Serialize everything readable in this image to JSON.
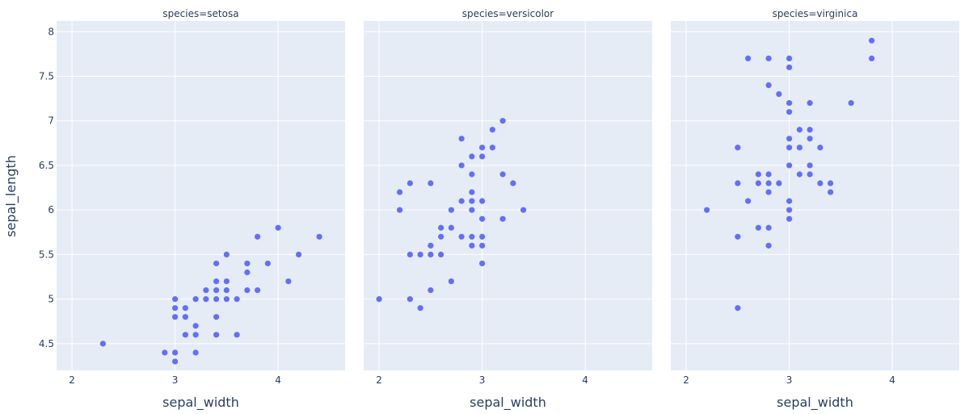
{
  "chart_data": {
    "type": "scatter",
    "xlabel": "sepal_width",
    "ylabel": "sepal_length",
    "xlim": [
      1.85,
      4.65
    ],
    "ylim": [
      4.2,
      8.12
    ],
    "x_ticks": [
      2,
      3,
      4
    ],
    "y_ticks": [
      4.5,
      5,
      5.5,
      6,
      6.5,
      7,
      7.5,
      8
    ],
    "y_tick_labels": [
      "4.5",
      "5",
      "5.5",
      "6",
      "6.5",
      "7",
      "7.5",
      "8"
    ],
    "marker_color": "#636efa",
    "plot_bgcolor": "#e5ecf6",
    "grid": true,
    "facets": [
      {
        "title": "species=setosa",
        "points": [
          [
            2.3,
            4.5
          ],
          [
            2.9,
            4.4
          ],
          [
            3.0,
            4.3
          ],
          [
            3.0,
            4.4
          ],
          [
            3.0,
            4.8
          ],
          [
            3.0,
            4.9
          ],
          [
            3.0,
            5.0
          ],
          [
            3.1,
            4.6
          ],
          [
            3.1,
            4.8
          ],
          [
            3.1,
            4.9
          ],
          [
            3.2,
            4.4
          ],
          [
            3.2,
            4.6
          ],
          [
            3.2,
            4.7
          ],
          [
            3.2,
            5.0
          ],
          [
            3.3,
            5.0
          ],
          [
            3.3,
            5.1
          ],
          [
            3.4,
            4.6
          ],
          [
            3.4,
            4.8
          ],
          [
            3.4,
            5.0
          ],
          [
            3.4,
            5.1
          ],
          [
            3.4,
            5.2
          ],
          [
            3.4,
            5.4
          ],
          [
            3.5,
            5.0
          ],
          [
            3.5,
            5.1
          ],
          [
            3.5,
            5.2
          ],
          [
            3.5,
            5.5
          ],
          [
            3.6,
            4.6
          ],
          [
            3.6,
            5.0
          ],
          [
            3.7,
            5.1
          ],
          [
            3.7,
            5.3
          ],
          [
            3.7,
            5.4
          ],
          [
            3.8,
            5.1
          ],
          [
            3.8,
            5.7
          ],
          [
            3.9,
            5.4
          ],
          [
            4.0,
            5.8
          ],
          [
            4.1,
            5.2
          ],
          [
            4.2,
            5.5
          ],
          [
            4.4,
            5.7
          ]
        ]
      },
      {
        "title": "species=versicolor",
        "points": [
          [
            2.0,
            5.0
          ],
          [
            2.2,
            6.0
          ],
          [
            2.2,
            6.2
          ],
          [
            2.3,
            5.0
          ],
          [
            2.3,
            5.5
          ],
          [
            2.3,
            6.3
          ],
          [
            2.4,
            4.9
          ],
          [
            2.4,
            5.5
          ],
          [
            2.5,
            5.1
          ],
          [
            2.5,
            5.5
          ],
          [
            2.5,
            5.6
          ],
          [
            2.5,
            6.3
          ],
          [
            2.6,
            5.5
          ],
          [
            2.6,
            5.7
          ],
          [
            2.6,
            5.8
          ],
          [
            2.7,
            5.2
          ],
          [
            2.7,
            5.8
          ],
          [
            2.7,
            6.0
          ],
          [
            2.8,
            5.7
          ],
          [
            2.8,
            6.1
          ],
          [
            2.8,
            6.5
          ],
          [
            2.8,
            6.8
          ],
          [
            2.9,
            5.6
          ],
          [
            2.9,
            5.7
          ],
          [
            2.9,
            6.0
          ],
          [
            2.9,
            6.1
          ],
          [
            2.9,
            6.2
          ],
          [
            2.9,
            6.4
          ],
          [
            2.9,
            6.6
          ],
          [
            3.0,
            5.4
          ],
          [
            3.0,
            5.6
          ],
          [
            3.0,
            5.7
          ],
          [
            3.0,
            5.9
          ],
          [
            3.0,
            6.1
          ],
          [
            3.0,
            6.6
          ],
          [
            3.0,
            6.7
          ],
          [
            3.1,
            6.7
          ],
          [
            3.1,
            6.9
          ],
          [
            3.2,
            5.9
          ],
          [
            3.2,
            6.4
          ],
          [
            3.2,
            7.0
          ],
          [
            3.3,
            6.3
          ],
          [
            3.4,
            6.0
          ]
        ]
      },
      {
        "title": "species=virginica",
        "points": [
          [
            2.2,
            6.0
          ],
          [
            2.5,
            4.9
          ],
          [
            2.5,
            5.7
          ],
          [
            2.5,
            6.3
          ],
          [
            2.5,
            6.7
          ],
          [
            2.6,
            6.1
          ],
          [
            2.6,
            7.7
          ],
          [
            2.7,
            5.8
          ],
          [
            2.7,
            6.3
          ],
          [
            2.7,
            6.4
          ],
          [
            2.8,
            5.6
          ],
          [
            2.8,
            5.8
          ],
          [
            2.8,
            6.2
          ],
          [
            2.8,
            6.3
          ],
          [
            2.8,
            6.4
          ],
          [
            2.8,
            7.4
          ],
          [
            2.8,
            7.7
          ],
          [
            2.9,
            6.3
          ],
          [
            2.9,
            7.3
          ],
          [
            3.0,
            5.9
          ],
          [
            3.0,
            6.0
          ],
          [
            3.0,
            6.1
          ],
          [
            3.0,
            6.5
          ],
          [
            3.0,
            6.7
          ],
          [
            3.0,
            6.8
          ],
          [
            3.0,
            7.1
          ],
          [
            3.0,
            7.2
          ],
          [
            3.0,
            7.6
          ],
          [
            3.0,
            7.7
          ],
          [
            3.1,
            6.4
          ],
          [
            3.1,
            6.7
          ],
          [
            3.1,
            6.9
          ],
          [
            3.2,
            6.4
          ],
          [
            3.2,
            6.5
          ],
          [
            3.2,
            6.8
          ],
          [
            3.2,
            6.9
          ],
          [
            3.2,
            7.2
          ],
          [
            3.3,
            6.3
          ],
          [
            3.3,
            6.7
          ],
          [
            3.4,
            6.2
          ],
          [
            3.4,
            6.3
          ],
          [
            3.6,
            7.2
          ],
          [
            3.8,
            7.7
          ],
          [
            3.8,
            7.9
          ]
        ]
      }
    ]
  }
}
